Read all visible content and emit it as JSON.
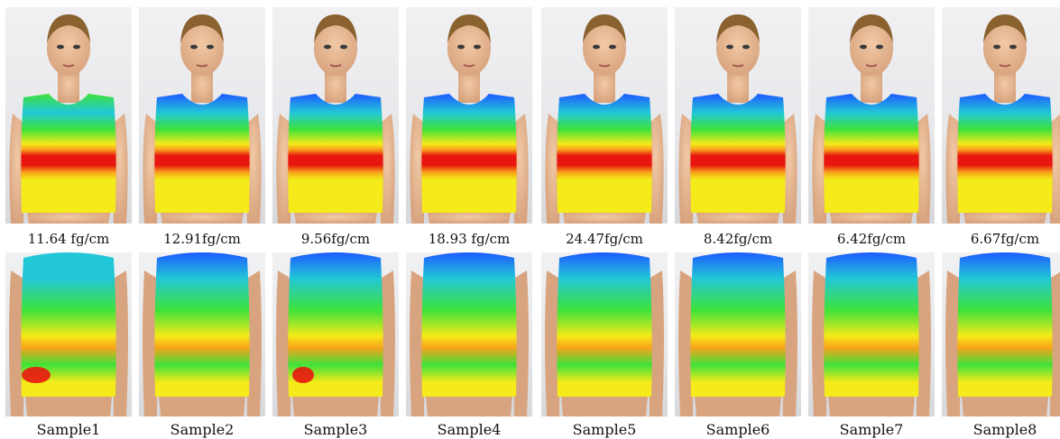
{
  "figure": {
    "panels": [
      {
        "measure": "11.64 fg/cm",
        "label": "Sample1"
      },
      {
        "measure": "12.91fg/cm",
        "label": "Sample2"
      },
      {
        "measure": "9.56fg/cm",
        "label": "Sample3"
      },
      {
        "measure": "18.93 fg/cm",
        "label": "Sample4"
      },
      {
        "measure": "24.47fg/cm",
        "label": "Sample5"
      },
      {
        "measure": "8.42fg/cm",
        "label": "Sample6"
      },
      {
        "measure": "6.42fg/cm",
        "label": "Sample7"
      },
      {
        "measure": "6.67fg/cm",
        "label": "Sample8"
      }
    ]
  },
  "colors": {
    "heat_blue": "#1e5bff",
    "heat_cyan": "#22c7d8",
    "heat_green": "#3ee23a",
    "heat_yellow": "#f5ea1a",
    "heat_orange": "#f7a21a",
    "heat_red": "#e8160f",
    "skin": "#d8a47f",
    "hair": "#8a6230"
  }
}
